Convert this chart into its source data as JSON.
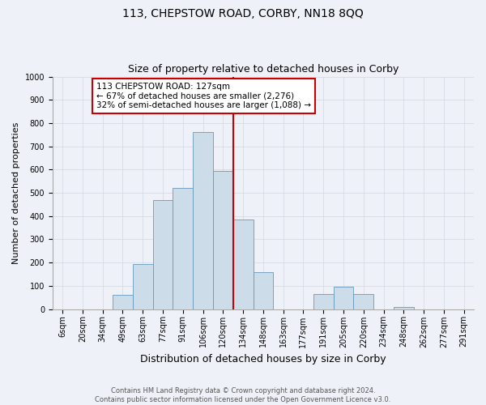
{
  "title": "113, CHEPSTOW ROAD, CORBY, NN18 8QQ",
  "subtitle": "Size of property relative to detached houses in Corby",
  "xlabel": "Distribution of detached houses by size in Corby",
  "ylabel": "Number of detached properties",
  "footer_line1": "Contains HM Land Registry data © Crown copyright and database right 2024.",
  "footer_line2": "Contains public sector information licensed under the Open Government Licence v3.0.",
  "bar_labels": [
    "6sqm",
    "20sqm",
    "34sqm",
    "49sqm",
    "63sqm",
    "77sqm",
    "91sqm",
    "106sqm",
    "120sqm",
    "134sqm",
    "148sqm",
    "163sqm",
    "177sqm",
    "191sqm",
    "205sqm",
    "220sqm",
    "234sqm",
    "248sqm",
    "262sqm",
    "277sqm",
    "291sqm"
  ],
  "bar_values": [
    0,
    0,
    0,
    60,
    195,
    470,
    520,
    760,
    595,
    385,
    160,
    0,
    0,
    65,
    95,
    65,
    0,
    10,
    0,
    0,
    0
  ],
  "bar_color": "#ccdce8",
  "bar_edge_color": "#6699bb",
  "vline_x_index": 8.5,
  "vline_color": "#cc0000",
  "annotation_line1": "113 CHEPSTOW ROAD: 127sqm",
  "annotation_line2": "← 67% of detached houses are smaller (2,276)",
  "annotation_line3": "32% of semi-detached houses are larger (1,088) →",
  "annotation_box_color": "#cc0000",
  "ylim": [
    0,
    1000
  ],
  "yticks": [
    0,
    100,
    200,
    300,
    400,
    500,
    600,
    700,
    800,
    900,
    1000
  ],
  "background_color": "#eef2f8",
  "grid_color": "#d0d8e0",
  "title_fontsize": 10,
  "subtitle_fontsize": 9,
  "xlabel_fontsize": 9,
  "ylabel_fontsize": 8,
  "tick_fontsize": 7,
  "annot_fontsize": 7.5
}
